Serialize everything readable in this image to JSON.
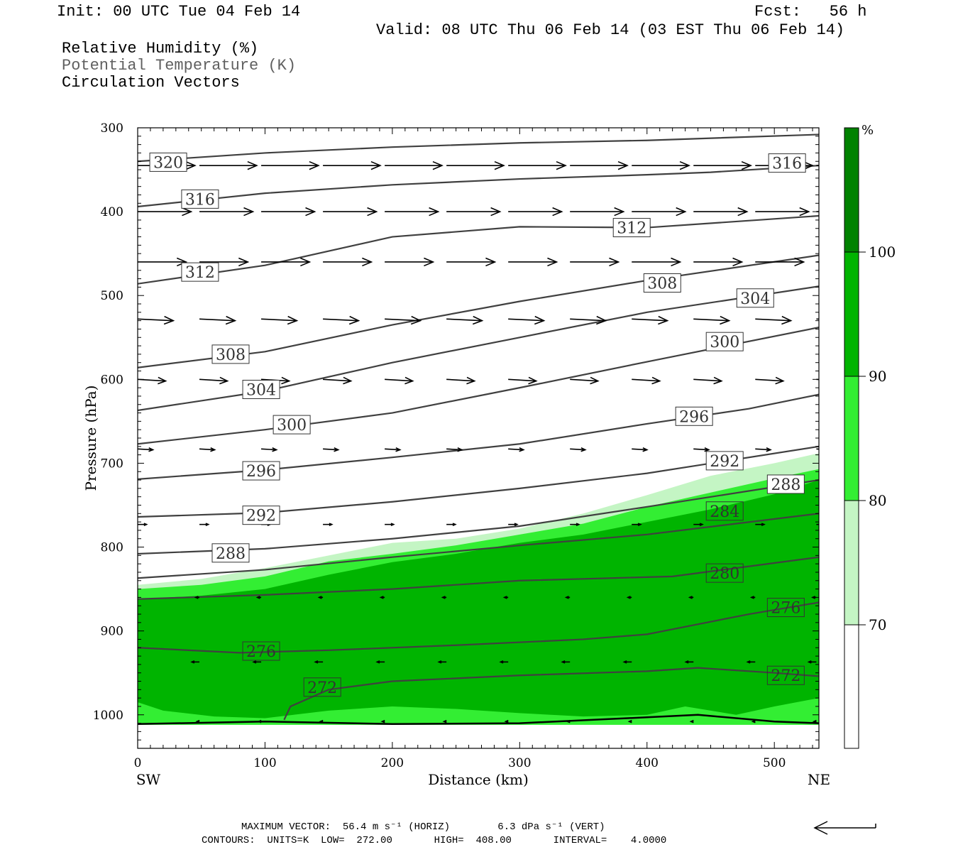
{
  "header": {
    "init": "Init: 00 UTC Tue 04 Feb 14",
    "fcst": "Fcst:   56 h",
    "valid": "Valid: 08 UTC Thu 06 Feb 14 (03 EST Thu 06 Feb 14)",
    "field1": "Relative Humidity (%)",
    "field2": "Potential Temperature (K)",
    "field3": "Circulation Vectors"
  },
  "footer": {
    "max_vector": "MAXIMUM VECTOR:  56.4 m s⁻¹ (HORIZ)        6.3 dPa s⁻¹ (VERT)",
    "contours": "CONTOURS:  UNITS=K  LOW=  272.00       HIGH=  408.00       INTERVAL=    4.0000"
  },
  "colors": {
    "rh_70": "#c4f5c4",
    "rh_80": "#33ee33",
    "rh_90": "#00b400",
    "rh_100": "#008200",
    "contour": "#404040",
    "arrow": "#000000"
  },
  "colorbar": {
    "unit": "%",
    "labels": [
      "70",
      "80",
      "90",
      "100"
    ]
  },
  "chart_data": {
    "type": "cross-section",
    "xlabel": "Distance (km)",
    "ylabel": "Pressure (hPa)",
    "xlim": [
      0,
      535
    ],
    "ylim": [
      1040,
      300
    ],
    "xticks": [
      0,
      100,
      200,
      300,
      400,
      500
    ],
    "yticks": [
      300,
      400,
      500,
      600,
      700,
      800,
      900,
      1000
    ],
    "x_end_labels": {
      "left": "SW",
      "right": "NE"
    },
    "rh_fill": [
      {
        "level": 70,
        "upper": [
          [
            0,
            845
          ],
          [
            50,
            838
          ],
          [
            100,
            825
          ],
          [
            150,
            810
          ],
          [
            200,
            795
          ],
          [
            250,
            790
          ],
          [
            300,
            778
          ],
          [
            350,
            760
          ],
          [
            400,
            738
          ],
          [
            450,
            715
          ],
          [
            500,
            700
          ],
          [
            535,
            688
          ]
        ]
      },
      {
        "level": 80,
        "upper": [
          [
            0,
            850
          ],
          [
            50,
            845
          ],
          [
            100,
            835
          ],
          [
            150,
            817
          ],
          [
            200,
            808
          ],
          [
            250,
            798
          ],
          [
            300,
            785
          ],
          [
            350,
            772
          ],
          [
            400,
            752
          ],
          [
            450,
            735
          ],
          [
            500,
            718
          ],
          [
            535,
            707
          ]
        ]
      },
      {
        "level": 90,
        "upper": [
          [
            0,
            862
          ],
          [
            50,
            858
          ],
          [
            100,
            850
          ],
          [
            150,
            833
          ],
          [
            200,
            818
          ],
          [
            250,
            808
          ],
          [
            300,
            795
          ],
          [
            350,
            785
          ],
          [
            400,
            770
          ],
          [
            450,
            755
          ],
          [
            500,
            737
          ],
          [
            535,
            720
          ]
        ],
        "lower": [
          [
            0,
            985
          ],
          [
            20,
            995
          ],
          [
            60,
            1002
          ],
          [
            100,
            1004
          ],
          [
            150,
            995
          ],
          [
            200,
            990
          ],
          [
            250,
            993
          ],
          [
            300,
            998
          ],
          [
            350,
            1002
          ],
          [
            400,
            1000
          ],
          [
            430,
            990
          ],
          [
            470,
            1000
          ],
          [
            500,
            990
          ],
          [
            535,
            980
          ]
        ]
      }
    ],
    "theta_contours": [
      {
        "value": 320,
        "points": [
          [
            0,
            340
          ],
          [
            100,
            330
          ],
          [
            200,
            323
          ],
          [
            300,
            318
          ],
          [
            400,
            315
          ],
          [
            535,
            308
          ]
        ],
        "label_at": [
          24,
          341
        ]
      },
      {
        "value": 316,
        "points": [
          [
            0,
            394
          ],
          [
            100,
            378
          ],
          [
            200,
            368
          ],
          [
            300,
            361
          ],
          [
            400,
            356
          ],
          [
            450,
            353
          ],
          [
            535,
            345
          ]
        ],
        "label_at": [
          49,
          385
        ]
      },
      {
        "value": 316,
        "points": [
          [
            0,
            394
          ],
          [
            100,
            378
          ],
          [
            200,
            368
          ],
          [
            300,
            361
          ],
          [
            400,
            356
          ],
          [
            450,
            353
          ],
          [
            535,
            345
          ]
        ],
        "label_at": [
          510,
          342
        ]
      },
      {
        "value": 312,
        "points": [
          [
            0,
            486
          ],
          [
            100,
            464
          ],
          [
            200,
            430
          ],
          [
            300,
            418
          ],
          [
            400,
            419
          ],
          [
            535,
            405
          ]
        ],
        "label_at": [
          49,
          472
        ]
      },
      {
        "value": 312,
        "points": [
          [
            0,
            486
          ],
          [
            100,
            464
          ],
          [
            200,
            430
          ],
          [
            300,
            418
          ],
          [
            400,
            419
          ],
          [
            535,
            405
          ]
        ],
        "label_at": [
          388,
          419
        ]
      },
      {
        "value": 308,
        "points": [
          [
            0,
            586
          ],
          [
            100,
            567
          ],
          [
            200,
            535
          ],
          [
            300,
            507
          ],
          [
            400,
            482
          ],
          [
            535,
            452
          ]
        ],
        "label_at": [
          73,
          570
        ]
      },
      {
        "value": 308,
        "points": [
          [
            0,
            586
          ],
          [
            100,
            567
          ],
          [
            200,
            535
          ],
          [
            300,
            507
          ],
          [
            400,
            482
          ],
          [
            535,
            452
          ]
        ],
        "label_at": [
          412,
          485
        ]
      },
      {
        "value": 304,
        "points": [
          [
            0,
            637
          ],
          [
            100,
            614
          ],
          [
            200,
            580
          ],
          [
            300,
            550
          ],
          [
            400,
            520
          ],
          [
            535,
            489
          ]
        ],
        "label_at": [
          97,
          612
        ]
      },
      {
        "value": 304,
        "points": [
          [
            0,
            637
          ],
          [
            100,
            614
          ],
          [
            200,
            580
          ],
          [
            300,
            550
          ],
          [
            400,
            520
          ],
          [
            535,
            489
          ]
        ],
        "label_at": [
          485,
          503
        ]
      },
      {
        "value": 300,
        "points": [
          [
            0,
            677
          ],
          [
            100,
            660
          ],
          [
            200,
            640
          ],
          [
            300,
            610
          ],
          [
            400,
            579
          ],
          [
            535,
            538
          ]
        ],
        "label_at": [
          121,
          654
        ]
      },
      {
        "value": 300,
        "points": [
          [
            0,
            677
          ],
          [
            100,
            660
          ],
          [
            200,
            640
          ],
          [
            300,
            610
          ],
          [
            400,
            579
          ],
          [
            535,
            538
          ]
        ],
        "label_at": [
          461,
          555
        ]
      },
      {
        "value": 296,
        "points": [
          [
            0,
            719
          ],
          [
            100,
            708
          ],
          [
            200,
            693
          ],
          [
            300,
            677
          ],
          [
            400,
            653
          ],
          [
            480,
            635
          ],
          [
            535,
            618
          ]
        ],
        "label_at": [
          97,
          709
        ]
      },
      {
        "value": 296,
        "points": [
          [
            0,
            719
          ],
          [
            100,
            708
          ],
          [
            200,
            693
          ],
          [
            300,
            677
          ],
          [
            400,
            653
          ],
          [
            480,
            635
          ],
          [
            535,
            618
          ]
        ],
        "label_at": [
          437,
          644
        ]
      },
      {
        "value": 292,
        "points": [
          [
            0,
            764
          ],
          [
            100,
            759
          ],
          [
            200,
            746
          ],
          [
            300,
            730
          ],
          [
            400,
            712
          ],
          [
            535,
            680
          ]
        ],
        "label_at": [
          97,
          762
        ]
      },
      {
        "value": 292,
        "points": [
          [
            0,
            764
          ],
          [
            100,
            759
          ],
          [
            200,
            746
          ],
          [
            300,
            730
          ],
          [
            400,
            712
          ],
          [
            535,
            680
          ]
        ],
        "label_at": [
          461,
          697
        ]
      },
      {
        "value": 288,
        "points": [
          [
            0,
            808
          ],
          [
            100,
            802
          ],
          [
            200,
            790
          ],
          [
            300,
            775
          ],
          [
            400,
            752
          ],
          [
            535,
            720
          ]
        ],
        "label_at": [
          73,
          807
        ]
      },
      {
        "value": 288,
        "points": [
          [
            0,
            808
          ],
          [
            100,
            802
          ],
          [
            200,
            790
          ],
          [
            300,
            775
          ],
          [
            400,
            752
          ],
          [
            535,
            720
          ]
        ],
        "label_at": [
          509,
          725
        ]
      },
      {
        "value": 284,
        "points": [
          [
            0,
            837
          ],
          [
            100,
            827
          ],
          [
            200,
            812
          ],
          [
            300,
            798
          ],
          [
            400,
            785
          ],
          [
            535,
            760
          ]
        ],
        "label_at": [
          461,
          757
        ]
      },
      {
        "value": 280,
        "points": [
          [
            0,
            862
          ],
          [
            100,
            857
          ],
          [
            200,
            850
          ],
          [
            300,
            840
          ],
          [
            420,
            835
          ],
          [
            535,
            812
          ]
        ],
        "label_at": [
          461,
          831
        ]
      },
      {
        "value": 276,
        "points": [
          [
            0,
            920
          ],
          [
            80,
            926
          ],
          [
            150,
            923
          ],
          [
            250,
            917
          ],
          [
            350,
            910
          ],
          [
            400,
            904
          ],
          [
            480,
            880
          ],
          [
            535,
            866
          ]
        ],
        "label_at": [
          97,
          924
        ]
      },
      {
        "value": 276,
        "points": [
          [
            0,
            920
          ],
          [
            80,
            926
          ],
          [
            150,
            923
          ],
          [
            250,
            917
          ],
          [
            350,
            910
          ],
          [
            400,
            904
          ],
          [
            480,
            880
          ],
          [
            535,
            866
          ]
        ],
        "label_at": [
          509,
          872
        ]
      },
      {
        "value": 272,
        "points": [
          [
            115,
            1006
          ],
          [
            120,
            990
          ],
          [
            150,
            970
          ],
          [
            200,
            960
          ],
          [
            300,
            953
          ],
          [
            400,
            948
          ],
          [
            440,
            944
          ],
          [
            500,
            950
          ],
          [
            535,
            954
          ]
        ],
        "label_at": [
          145,
          967
        ]
      },
      {
        "value": 272,
        "points": [
          [
            115,
            1006
          ],
          [
            120,
            990
          ],
          [
            150,
            970
          ],
          [
            200,
            960
          ],
          [
            300,
            953
          ],
          [
            400,
            948
          ],
          [
            440,
            944
          ],
          [
            500,
            950
          ],
          [
            535,
            954
          ]
        ],
        "label_at": [
          509,
          953
        ]
      }
    ],
    "terrain_line": [
      [
        0,
        1011
      ],
      [
        100,
        1008
      ],
      [
        200,
        1011
      ],
      [
        300,
        1010
      ],
      [
        400,
        1003
      ],
      [
        440,
        1000
      ],
      [
        500,
        1008
      ],
      [
        535,
        1010
      ]
    ],
    "vectors": {
      "x": [
        0,
        48.5,
        97,
        145.5,
        194,
        242.5,
        291,
        339.5,
        388,
        436.5,
        485,
        533
      ],
      "rows": [
        {
          "p": 345,
          "len_km": 45,
          "dp": 0
        },
        {
          "p": 400,
          "len_km": 42,
          "dp": 0
        },
        {
          "p": 460,
          "len_km": 38,
          "dp": 0
        },
        {
          "p": 528,
          "len_km": 28,
          "dp": 2
        },
        {
          "p": 600,
          "len_km": 22,
          "dp": 2
        },
        {
          "p": 683,
          "len_km": 12,
          "dp": 1
        },
        {
          "p": 773,
          "len_km": 7,
          "dp": 0
        },
        {
          "p": 860,
          "len_km": -3,
          "dp": 0
        },
        {
          "p": 937,
          "len_km": -6,
          "dp": 0
        },
        {
          "p": 1008,
          "len_km": -2,
          "dp": 0
        }
      ]
    }
  }
}
